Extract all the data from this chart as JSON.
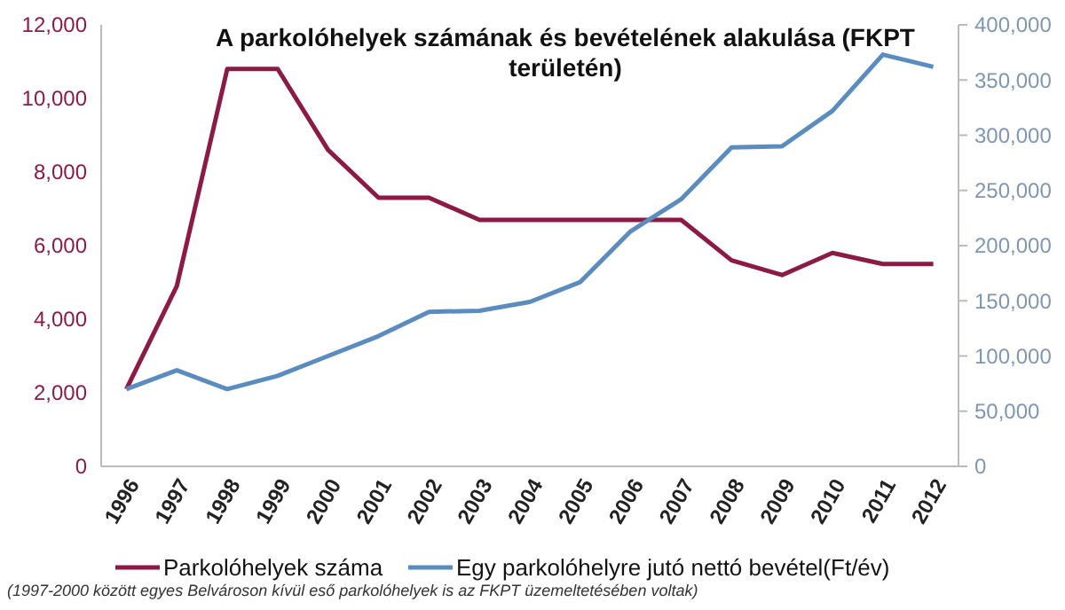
{
  "chart_data": {
    "type": "line",
    "title": "A parkolóhelyek számának és bevételének alakulása (FKPT területén)",
    "categories": [
      "1996",
      "1997",
      "1998",
      "1999",
      "2000",
      "2001",
      "2002",
      "2003",
      "2004",
      "2005",
      "2006",
      "2007",
      "2008",
      "2009",
      "2010",
      "2011",
      "2012"
    ],
    "series": [
      {
        "name": "Parkolóhelyek száma",
        "color": "#8b1a45",
        "values": [
          2100,
          4900,
          10800,
          10800,
          8600,
          7300,
          7300,
          6700,
          6700,
          6700,
          6700,
          6700,
          5600,
          5200,
          5800,
          5500,
          5500
        ]
      },
      {
        "name": "Egy parkolóhelyre jutó nettó bevétel(Ft/év)",
        "color": "#5b8cc0",
        "axis": "y2",
        "values": [
          70000,
          87000,
          70000,
          82000,
          100000,
          118000,
          140000,
          141000,
          149000,
          167000,
          213000,
          242000,
          289000,
          290000,
          322000,
          373000,
          362000
        ]
      }
    ],
    "ylim": [
      0,
      12000
    ],
    "yticks": [
      {
        "value": 0,
        "label": "0"
      },
      {
        "value": 2000,
        "label": "2,000"
      },
      {
        "value": 4000,
        "label": "4,000"
      },
      {
        "value": 6000,
        "label": "6,000"
      },
      {
        "value": 8000,
        "label": "8,000"
      },
      {
        "value": 10000,
        "label": "10,000"
      },
      {
        "value": 12000,
        "label": "12,000"
      }
    ],
    "y2lim": [
      0,
      400000
    ],
    "y2ticks": [
      {
        "value": 0,
        "label": "0"
      },
      {
        "value": 50000,
        "label": "50,000"
      },
      {
        "value": 100000,
        "label": "100,000"
      },
      {
        "value": 150000,
        "label": "150,000"
      },
      {
        "value": 200000,
        "label": "200,000"
      },
      {
        "value": 250000,
        "label": "250,000"
      },
      {
        "value": 300000,
        "label": "300,000"
      },
      {
        "value": 350000,
        "label": "350,000"
      },
      {
        "value": 400000,
        "label": "400,000"
      }
    ],
    "legend": "bottom",
    "grid": false,
    "marker": "none",
    "line_style": "solid",
    "annotations": [
      "(1997-2000 között egyes Belvároson kívül eső parkolóhelyek is az FKPT üzemeltetésében voltak)"
    ]
  }
}
